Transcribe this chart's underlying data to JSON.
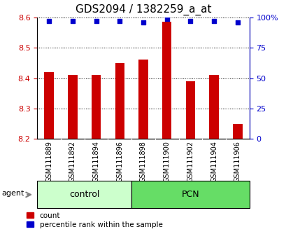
{
  "title": "GDS2094 / 1382259_a_at",
  "categories": [
    "GSM111889",
    "GSM111892",
    "GSM111894",
    "GSM111896",
    "GSM111898",
    "GSM111900",
    "GSM111902",
    "GSM111904",
    "GSM111906"
  ],
  "bar_values": [
    8.42,
    8.41,
    8.41,
    8.45,
    8.46,
    8.585,
    8.39,
    8.41,
    8.25
  ],
  "bar_bottom": 8.2,
  "percentile_values": [
    97,
    97,
    97,
    97,
    96,
    99,
    97,
    97,
    96
  ],
  "ylim_left": [
    8.2,
    8.6
  ],
  "ylim_right": [
    0,
    100
  ],
  "yticks_left": [
    8.2,
    8.3,
    8.4,
    8.5,
    8.6
  ],
  "yticks_right": [
    0,
    25,
    50,
    75,
    100
  ],
  "bar_color": "#cc0000",
  "dot_color": "#0000cc",
  "group_labels": [
    "control",
    "PCN"
  ],
  "group_ranges": [
    [
      0,
      3
    ],
    [
      4,
      8
    ]
  ],
  "group_colors_light": [
    "#ccffcc",
    "#66dd66"
  ],
  "legend_items": [
    "count",
    "percentile rank within the sample"
  ],
  "legend_colors": [
    "#cc0000",
    "#0000cc"
  ],
  "agent_label": "agent",
  "bg_color": "#ffffff",
  "tick_area_color": "#cccccc",
  "left_axis_color": "#cc0000",
  "right_axis_color": "#0000cc",
  "title_fontsize": 11,
  "tick_fontsize": 8,
  "label_fontsize": 9,
  "bar_width": 0.4
}
